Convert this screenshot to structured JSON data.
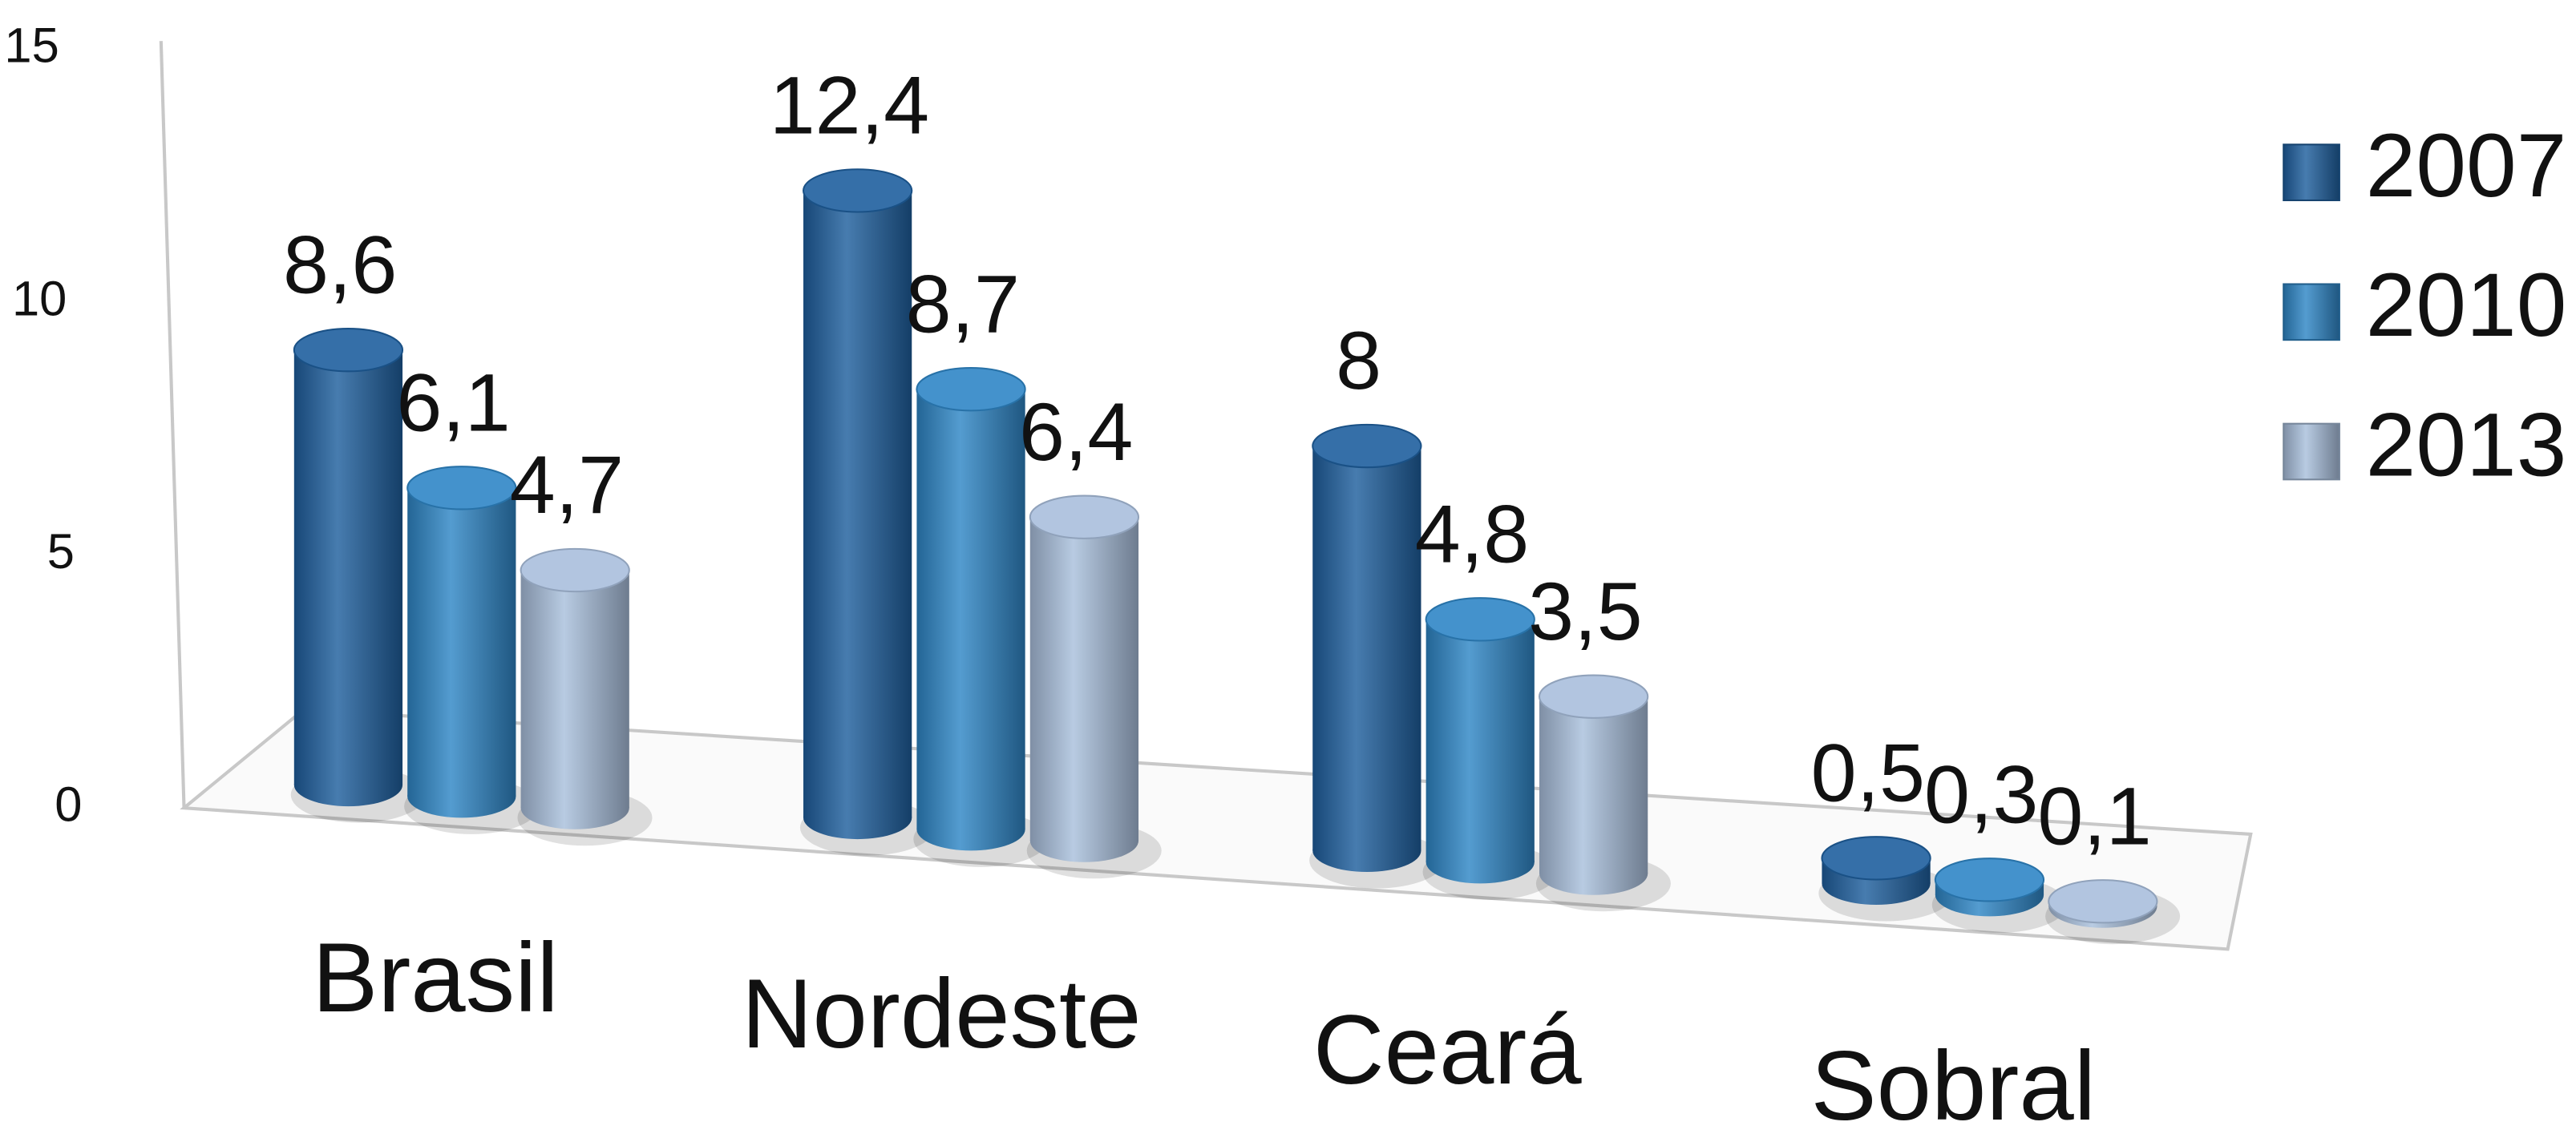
{
  "chart_data": {
    "type": "bar",
    "3d": true,
    "categories": [
      "Brasil",
      "Nordeste",
      "Ceará",
      "Sobral"
    ],
    "series": [
      {
        "name": "2007",
        "color": "#1f5f9e",
        "values": [
          8.6,
          12.4,
          8,
          0.5
        ],
        "value_labels": [
          "8,6",
          "12,4",
          "8",
          "0,5"
        ]
      },
      {
        "name": "2010",
        "color": "#2f86c6",
        "values": [
          6.1,
          8.7,
          4.8,
          0.3
        ],
        "value_labels": [
          "6,1",
          "8,7",
          "4,8",
          "0,3"
        ]
      },
      {
        "name": "2013",
        "color": "#a9bfdc",
        "values": [
          4.7,
          6.4,
          3.5,
          0.1
        ],
        "value_labels": [
          "4,7",
          "6,4",
          "3,5",
          "0,1"
        ]
      }
    ],
    "ylim": [
      0,
      15
    ],
    "yticks": [
      0,
      5,
      10,
      15
    ],
    "legend": "right"
  }
}
